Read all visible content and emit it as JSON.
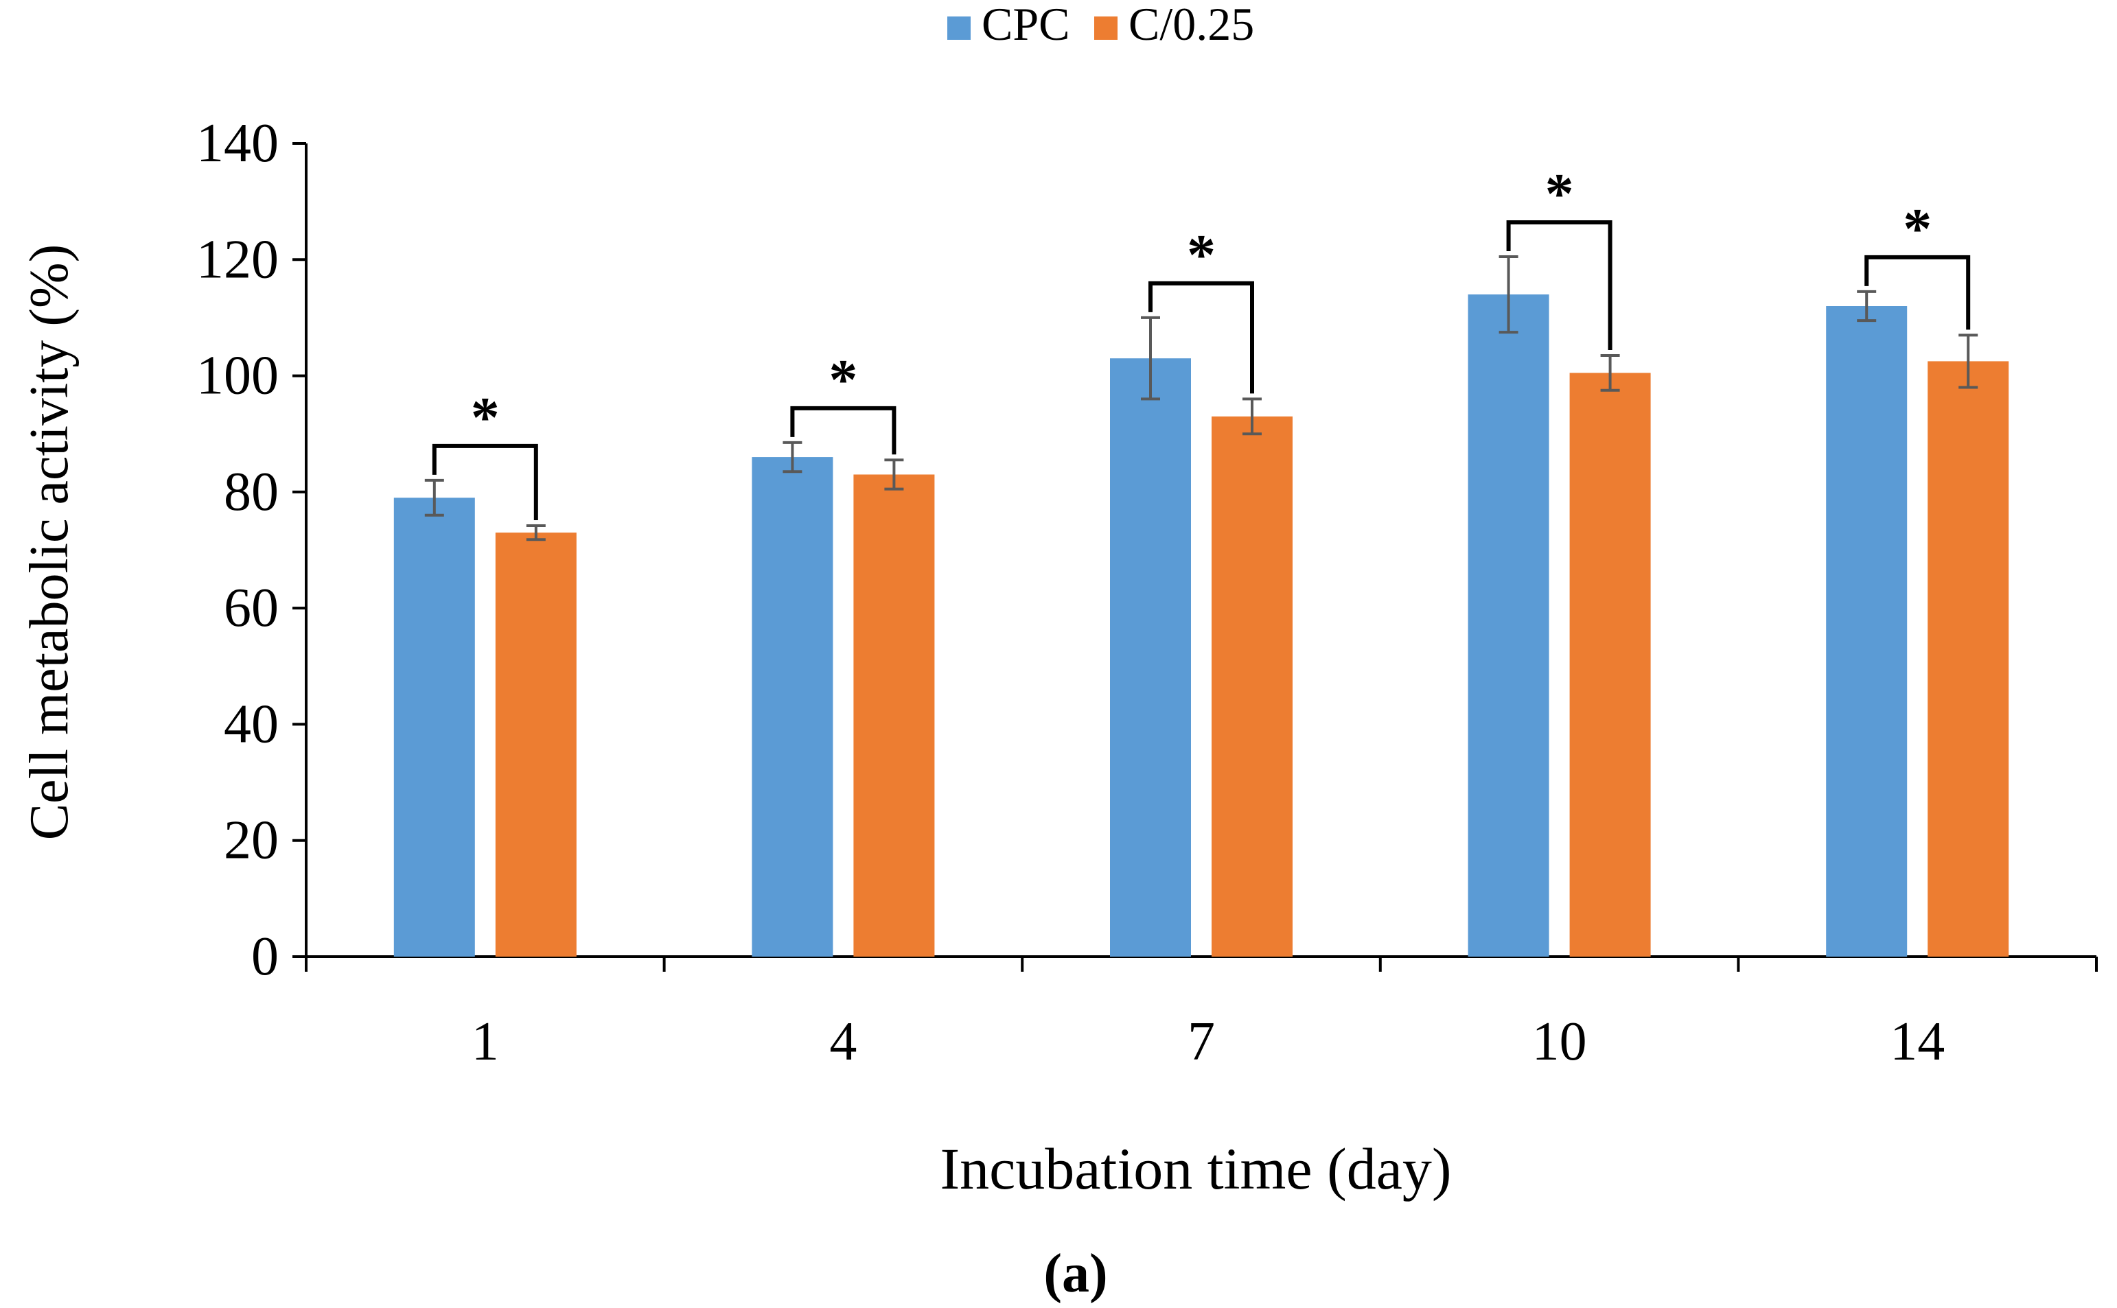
{
  "chart_data": {
    "type": "bar",
    "categories": [
      "1",
      "4",
      "7",
      "10",
      "14"
    ],
    "series": [
      {
        "name": "CPC",
        "color": "#5b9bd5",
        "values": [
          79,
          86,
          103,
          114,
          112
        ],
        "errors": [
          3,
          2.5,
          7,
          6.5,
          2.5
        ]
      },
      {
        "name": "C/0.25",
        "color": "#ed7d31",
        "values": [
          73,
          83,
          93,
          100.5,
          102.5
        ],
        "errors": [
          1.2,
          2.5,
          3,
          3,
          4.5
        ]
      }
    ],
    "significance": [
      {
        "category": "1",
        "label": "*"
      },
      {
        "category": "4",
        "label": "*"
      },
      {
        "category": "7",
        "label": "*"
      },
      {
        "category": "10",
        "label": "*"
      },
      {
        "category": "14",
        "label": "*"
      }
    ],
    "xlabel": "Incubation time  (day)",
    "ylabel": "Cell metabolic activity (%)",
    "ylim": [
      0,
      140
    ],
    "yticks": [
      0,
      20,
      40,
      60,
      80,
      100,
      120,
      140
    ],
    "ytick_labels": [
      "0",
      "20",
      "40",
      "60",
      "80",
      "100",
      "120",
      "140"
    ],
    "legend_position": "top-center",
    "grid": false,
    "panel_label": "(a)"
  }
}
